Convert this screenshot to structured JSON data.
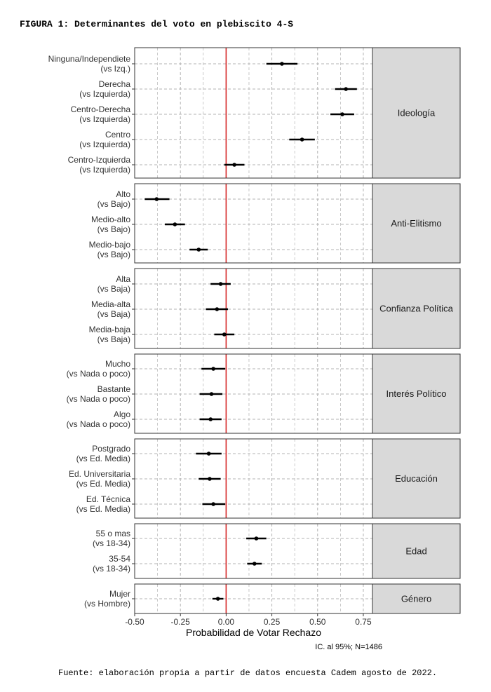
{
  "figure_title": "FIGURA 1: Determinantes del voto en plebiscito 4-S",
  "source_note": "Fuente: elaboración propia a partir de datos encuesta Cadem agosto de 2022.",
  "colors": {
    "reference_line": "#d62728",
    "point": "#000000",
    "strip_fill": "#d9d9d9",
    "grid": "#b3b3b3"
  },
  "chart_data": {
    "type": "scatter",
    "subtype": "coefficient-plot-with-95ci",
    "xlabel": "Probabilidad de Votar Rechazo",
    "caption": "IC. al 95%; N=1486",
    "xlim": [
      -0.5,
      0.8
    ],
    "x_ticks": [
      -0.5,
      -0.25,
      0.0,
      0.25,
      0.5,
      0.75
    ],
    "x_tick_labels": [
      "-0.50",
      "-0.25",
      "0.00",
      "0.25",
      "0.50",
      "0.75"
    ],
    "reference_x": 0.0,
    "grid": true,
    "panels": [
      {
        "name": "Ideología",
        "terms": [
          {
            "label": [
              "Ninguna/Independiete",
              "(vs Izq.)"
            ],
            "estimate": 0.305,
            "low": 0.22,
            "high": 0.39
          },
          {
            "label": [
              "Derecha",
              "(vs Izquierda)"
            ],
            "estimate": 0.655,
            "low": 0.595,
            "high": 0.715
          },
          {
            "label": [
              "Centro-Derecha",
              "(vs Izquierda)"
            ],
            "estimate": 0.635,
            "low": 0.57,
            "high": 0.7
          },
          {
            "label": [
              "Centro",
              "(vs Izquierda)"
            ],
            "estimate": 0.415,
            "low": 0.345,
            "high": 0.485
          },
          {
            "label": [
              "Centro-Izquierda",
              "(vs Izquierda)"
            ],
            "estimate": 0.045,
            "low": -0.01,
            "high": 0.1
          }
        ]
      },
      {
        "name": "Anti-Elitismo",
        "terms": [
          {
            "label": [
              "Alto",
              "(vs Bajo)"
            ],
            "estimate": -0.38,
            "low": -0.445,
            "high": -0.31
          },
          {
            "label": [
              "Medio-alto",
              "(vs Bajo)"
            ],
            "estimate": -0.28,
            "low": -0.335,
            "high": -0.225
          },
          {
            "label": [
              "Medio-bajo",
              "(vs Bajo)"
            ],
            "estimate": -0.15,
            "low": -0.2,
            "high": -0.1
          }
        ]
      },
      {
        "name": "Confianza Política",
        "terms": [
          {
            "label": [
              "Alta",
              "(vs Baja)"
            ],
            "estimate": -0.03,
            "low": -0.085,
            "high": 0.025
          },
          {
            "label": [
              "Media-alta",
              "(vs Baja)"
            ],
            "estimate": -0.05,
            "low": -0.11,
            "high": 0.01
          },
          {
            "label": [
              "Media-baja",
              "(vs Baja)"
            ],
            "estimate": -0.01,
            "low": -0.065,
            "high": 0.045
          }
        ]
      },
      {
        "name": "Interés Político",
        "terms": [
          {
            "label": [
              "Mucho",
              "(vs Nada o poco)"
            ],
            "estimate": -0.07,
            "low": -0.135,
            "high": -0.005
          },
          {
            "label": [
              "Bastante",
              "(vs Nada o poco)"
            ],
            "estimate": -0.08,
            "low": -0.145,
            "high": -0.02
          },
          {
            "label": [
              "Algo",
              "(vs Nada o poco)"
            ],
            "estimate": -0.085,
            "low": -0.145,
            "high": -0.025
          }
        ]
      },
      {
        "name": "Educación",
        "terms": [
          {
            "label": [
              "Postgrado",
              "(vs Ed. Media)"
            ],
            "estimate": -0.095,
            "low": -0.165,
            "high": -0.025
          },
          {
            "label": [
              "Ed. Universitaria",
              "(vs Ed. Media)"
            ],
            "estimate": -0.09,
            "low": -0.15,
            "high": -0.03
          },
          {
            "label": [
              "Ed. Técnica",
              "(vs Ed. Media)"
            ],
            "estimate": -0.07,
            "low": -0.13,
            "high": -0.005
          }
        ]
      },
      {
        "name": "Edad",
        "terms": [
          {
            "label": [
              "55 o mas",
              "(vs 18-34)"
            ],
            "estimate": 0.165,
            "low": 0.11,
            "high": 0.22
          },
          {
            "label": [
              "35-54",
              "(vs 18-34)"
            ],
            "estimate": 0.155,
            "low": 0.115,
            "high": 0.195
          }
        ]
      },
      {
        "name": "Género",
        "terms": [
          {
            "label": [
              "Mujer",
              "(vs Hombre)"
            ],
            "estimate": -0.045,
            "low": -0.075,
            "high": -0.015
          }
        ]
      }
    ]
  }
}
